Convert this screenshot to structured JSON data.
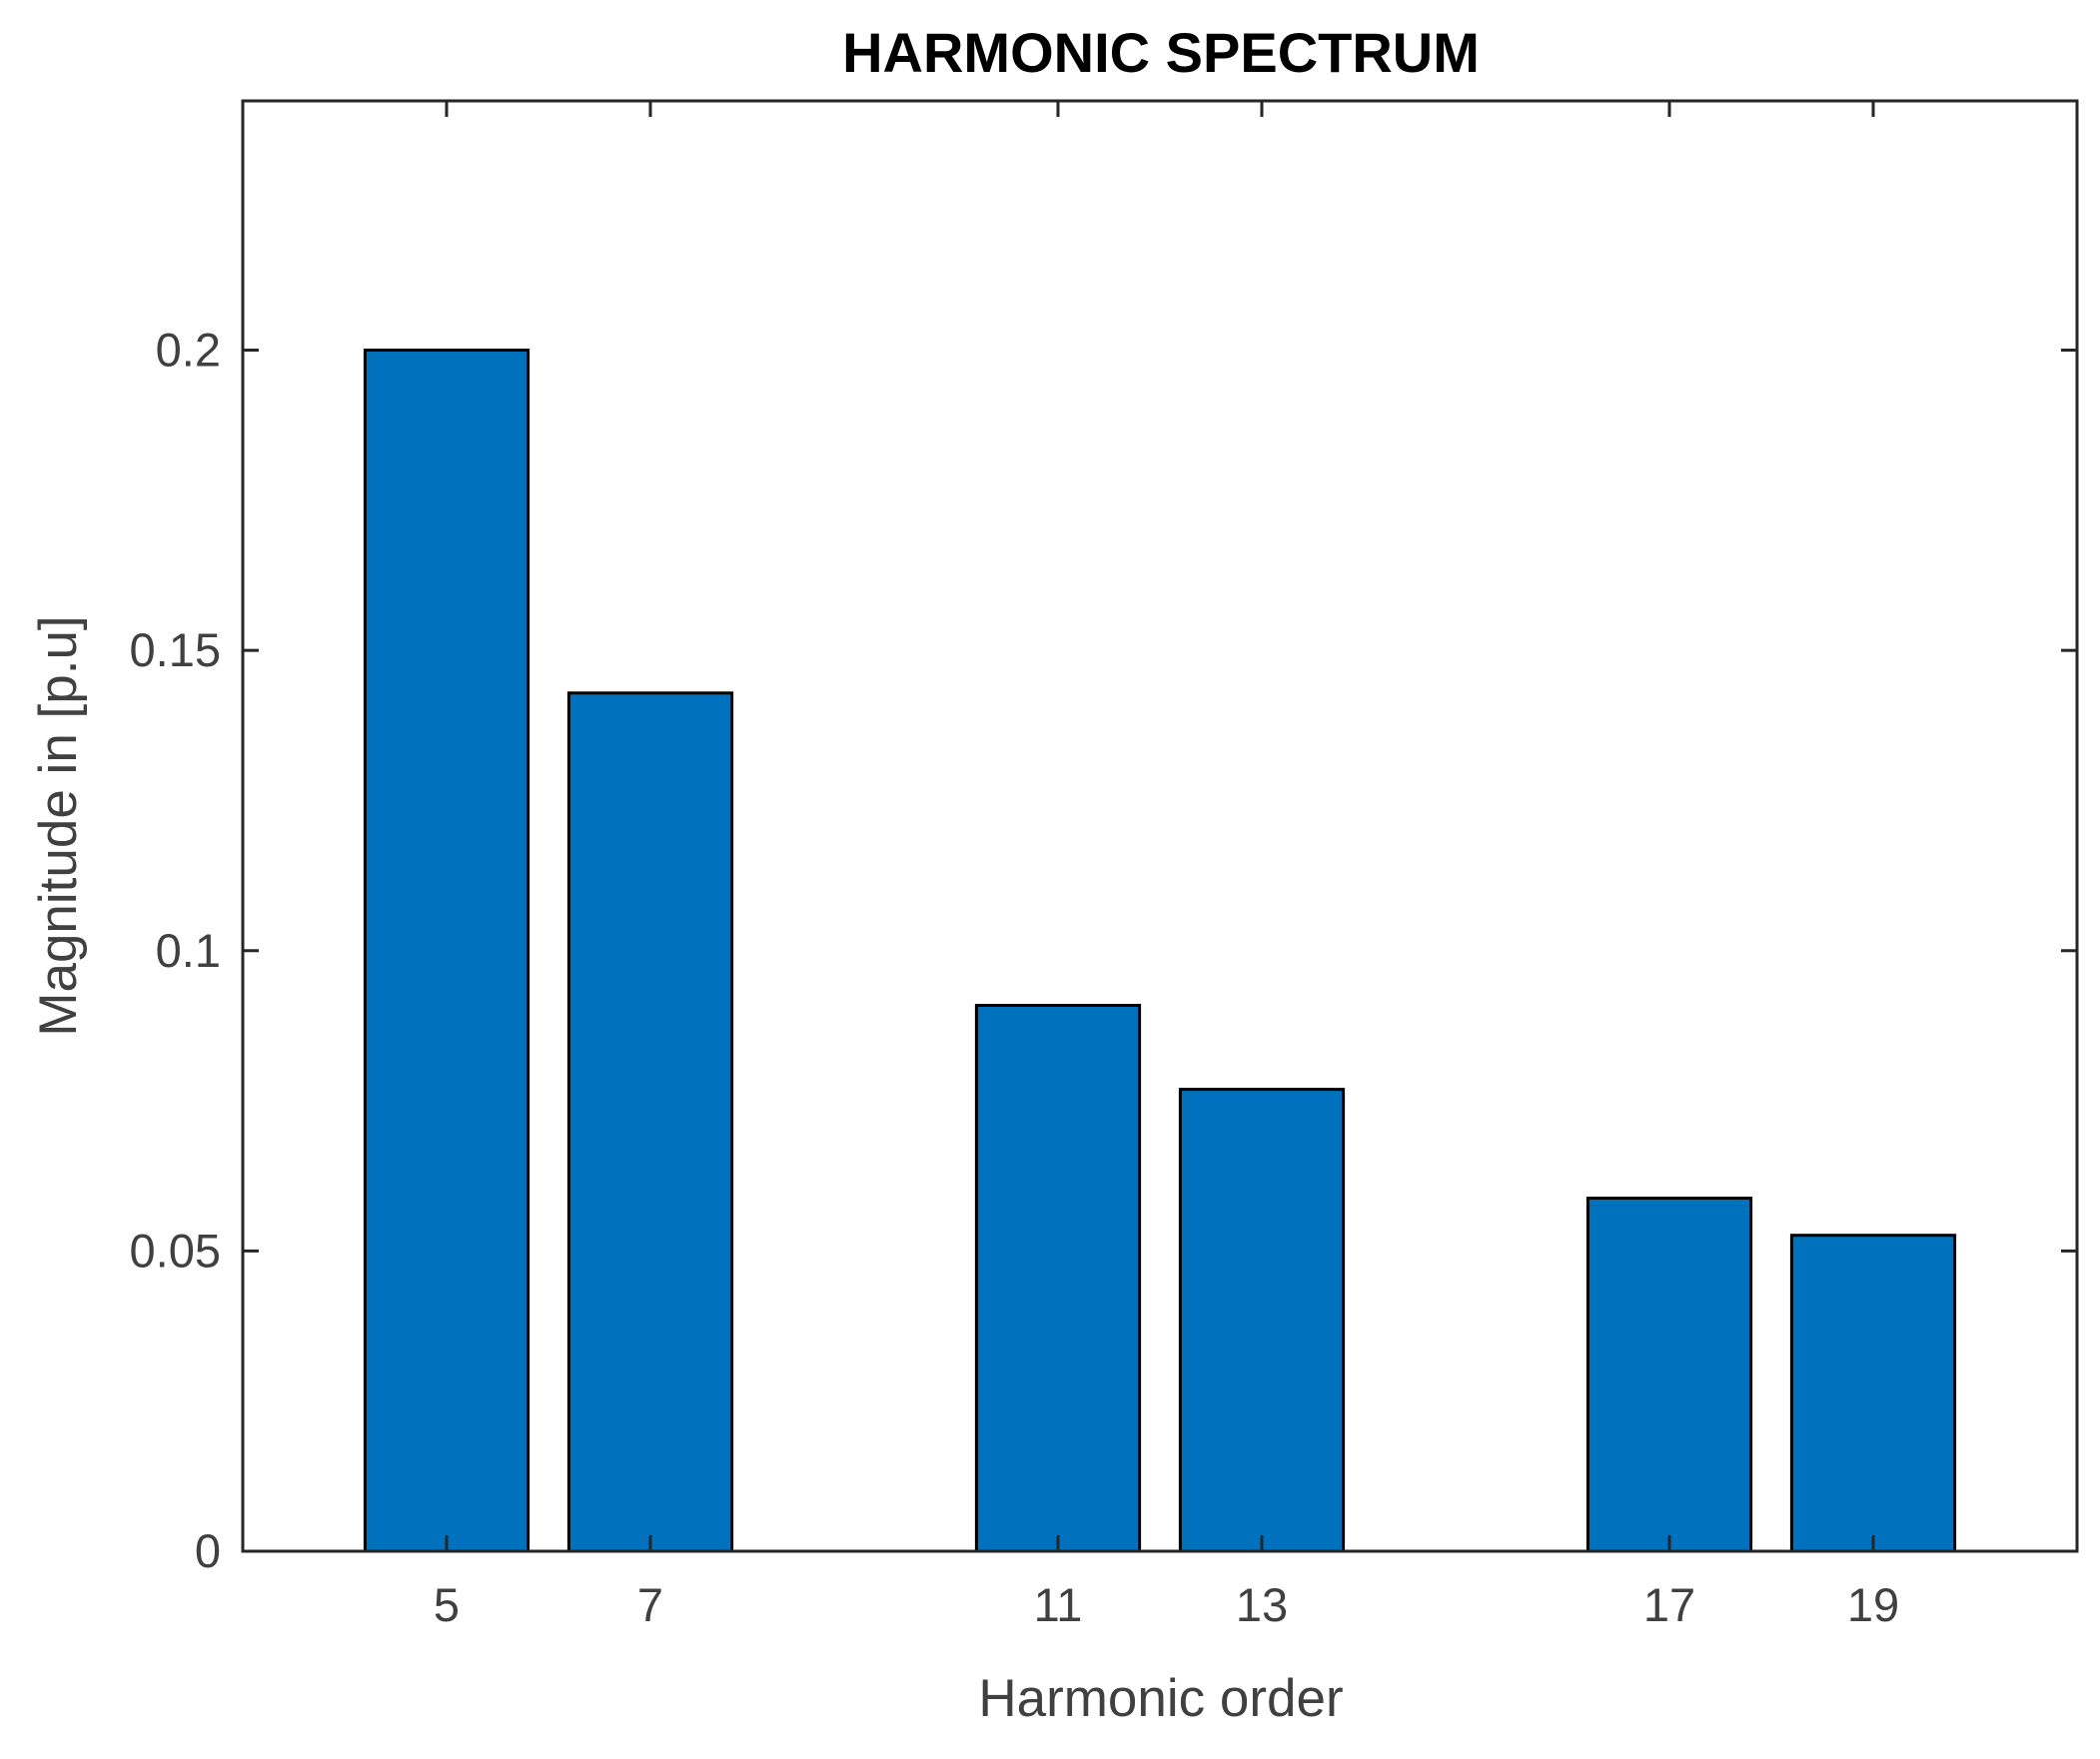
{
  "chart_data": {
    "type": "bar",
    "title": "HARMONIC SPECTRUM",
    "xlabel": "Harmonic order",
    "ylabel": "Magnitude in [p.u]",
    "x": [
      5,
      7,
      11,
      13,
      17,
      19
    ],
    "categories": [
      "5",
      "7",
      "11",
      "13",
      "17",
      "19"
    ],
    "values": [
      0.2,
      0.1429,
      0.0909,
      0.0769,
      0.0588,
      0.0526
    ],
    "xlim": [
      3,
      21
    ],
    "ylim": [
      0,
      0.2
    ],
    "yticks": [
      0,
      0.05,
      0.1,
      0.15,
      0.2
    ],
    "ytick_labels": [
      "0",
      "0.05",
      "0.1",
      "0.15",
      "0.2"
    ],
    "grid": false,
    "legend": "none",
    "bar_color": "#0072BD",
    "edge_color": "#000000"
  }
}
